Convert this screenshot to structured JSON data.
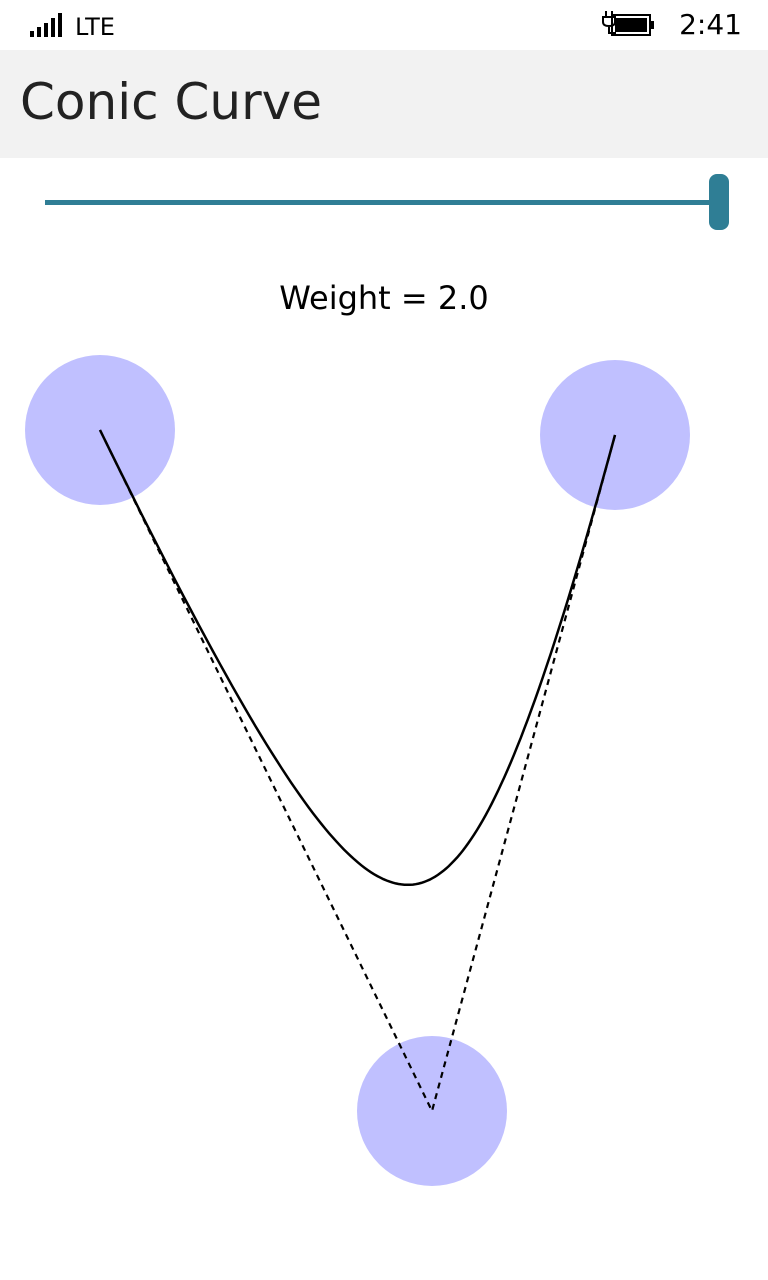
{
  "status_bar": {
    "network": "LTE",
    "time": "2:41"
  },
  "app": {
    "title": "Conic Curve"
  },
  "slider": {
    "value_fraction": 1.0,
    "accent_color": "#2f7e95"
  },
  "weight_label": "Weight = 2.0",
  "colors": {
    "control_point_fill": "#c0c0ff",
    "curve_stroke": "#000000"
  }
}
